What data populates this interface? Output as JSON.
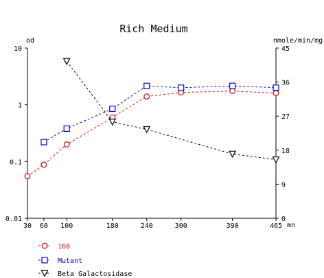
{
  "chart_data": {
    "type": "line",
    "title": "Rich Medium",
    "left_axis": {
      "unit": "od",
      "scale": "log",
      "range": [
        0.01,
        10
      ],
      "tick_labels": [
        "10",
        "1",
        "0.1",
        "0.01"
      ],
      "tick_values": [
        10,
        1,
        0.1,
        0.01
      ]
    },
    "right_axis": {
      "unit": "nmole/min/mg",
      "scale": "linear",
      "range": [
        0,
        45
      ],
      "tick_labels": [
        "45",
        "36",
        "27",
        "18",
        "9",
        "0"
      ],
      "tick_values": [
        45,
        36,
        27,
        18,
        9,
        0
      ]
    },
    "x_axis": {
      "unit": "mn",
      "range": [
        30,
        465
      ],
      "tick_labels": [
        "30",
        "60",
        "100",
        "180",
        "240",
        "300",
        "390",
        "465"
      ],
      "tick_values": [
        30,
        60,
        100,
        180,
        240,
        300,
        390,
        465
      ]
    },
    "grid": false,
    "legend_position": "bottom-left",
    "series": [
      {
        "name": "168",
        "axis": "left",
        "marker": "circle",
        "color": "#dd0000",
        "x": [
          30,
          60,
          100,
          180,
          240,
          300,
          390,
          465
        ],
        "values": [
          0.055,
          0.088,
          0.2,
          0.6,
          1.4,
          1.65,
          1.75,
          1.6
        ]
      },
      {
        "name": "Mutant",
        "axis": "left",
        "marker": "square",
        "color": "#0000cc",
        "x": [
          60,
          100,
          180,
          240,
          300,
          390,
          465
        ],
        "values": [
          0.22,
          0.38,
          0.85,
          2.15,
          2.0,
          2.15,
          2.0
        ]
      },
      {
        "name": "Beta Galactosidase",
        "axis": "right",
        "marker": "triangle-down",
        "color": "#000000",
        "x": [
          100,
          180,
          240,
          390,
          465
        ],
        "values": [
          41.5,
          25.5,
          23.5,
          17,
          15.5
        ]
      }
    ]
  }
}
